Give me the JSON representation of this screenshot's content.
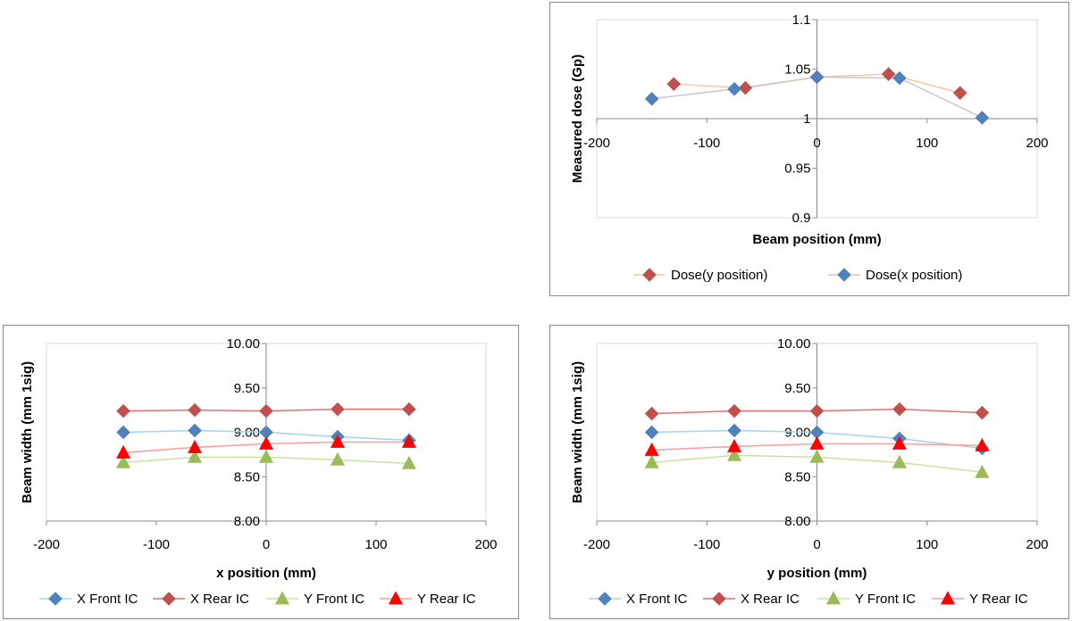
{
  "chart_data": [
    {
      "type": "line",
      "title": "",
      "xlabel": "Beam position (mm)",
      "ylabel": "Measured dose (Gp)",
      "xlim": [
        -200,
        200
      ],
      "ylim": [
        0.9,
        1.1
      ],
      "xticks": [
        -200,
        -100,
        0,
        100,
        200
      ],
      "yticks": [
        0.9,
        0.95,
        1,
        1.05,
        1.1
      ],
      "ytick_labels": [
        "0.9",
        "0.95",
        "1",
        "1.05",
        "1.1"
      ],
      "x_axis_crosses_at_y": 1.0,
      "grid": false,
      "legend_position": "bottom",
      "series": [
        {
          "name": "Dose(y position)",
          "color": "#c0504d",
          "line_color": "#f9c7a2",
          "marker": "diamond",
          "x": [
            -130,
            -65,
            0,
            65,
            130
          ],
          "y": [
            1.035,
            1.031,
            1.042,
            1.045,
            1.026
          ]
        },
        {
          "name": "Dose(x position)",
          "color": "#4f81bd",
          "line_color": "#c8c8c8",
          "marker": "diamond",
          "x": [
            -150,
            -75,
            0,
            75,
            150
          ],
          "y": [
            1.02,
            1.03,
            1.042,
            1.041,
            1.001
          ]
        }
      ]
    },
    {
      "type": "line",
      "title": "",
      "xlabel": "x position (mm)",
      "ylabel": "Beam width (mm 1sig)",
      "xlim": [
        -200,
        200
      ],
      "ylim": [
        8.0,
        10.0
      ],
      "xticks": [
        -200,
        -100,
        0,
        100,
        200
      ],
      "yticks": [
        8.0,
        8.5,
        9.0,
        9.5,
        10.0
      ],
      "ytick_labels": [
        "8.00",
        "8.50",
        "9.00",
        "9.50",
        "10.00"
      ],
      "x_axis_crosses_at_y": 8.0,
      "grid": false,
      "legend_position": "bottom",
      "series": [
        {
          "name": "X Front IC",
          "color": "#4f81bd",
          "line_color": "#9fd5f0",
          "marker": "diamond",
          "x": [
            -130,
            -65,
            0,
            65,
            130
          ],
          "y": [
            9.0,
            9.02,
            9.0,
            8.95,
            8.91
          ]
        },
        {
          "name": "X Rear IC",
          "color": "#c0504d",
          "line_color": "#e07070",
          "marker": "diamond",
          "x": [
            -130,
            -65,
            0,
            65,
            130
          ],
          "y": [
            9.24,
            9.25,
            9.24,
            9.26,
            9.26
          ]
        },
        {
          "name": "Y Front IC",
          "color": "#9bbb59",
          "line_color": "#c5e3a0",
          "marker": "triangle",
          "x": [
            -130,
            -65,
            0,
            65,
            130
          ],
          "y": [
            8.66,
            8.72,
            8.72,
            8.69,
            8.65
          ]
        },
        {
          "name": "Y Rear IC",
          "color": "#ff0000",
          "line_color": "#ff9a9a",
          "marker": "triangle",
          "x": [
            -130,
            -65,
            0,
            65,
            130
          ],
          "y": [
            8.77,
            8.83,
            8.87,
            8.89,
            8.89
          ]
        }
      ]
    },
    {
      "type": "line",
      "title": "",
      "xlabel": "y position (mm)",
      "ylabel": "Beam width (mm 1sig)",
      "xlim": [
        -200,
        200
      ],
      "ylim": [
        8.0,
        10.0
      ],
      "xticks": [
        -200,
        -100,
        0,
        100,
        200
      ],
      "yticks": [
        8.0,
        8.5,
        9.0,
        9.5,
        10.0
      ],
      "ytick_labels": [
        "8.00",
        "8.50",
        "9.00",
        "9.50",
        "10.00"
      ],
      "x_axis_crosses_at_y": 8.0,
      "grid": false,
      "legend_position": "bottom",
      "series": [
        {
          "name": "X Front IC",
          "color": "#4f81bd",
          "line_color": "#9fd5f0",
          "marker": "diamond",
          "x": [
            -150,
            -75,
            0,
            75,
            150
          ],
          "y": [
            9.0,
            9.02,
            9.0,
            8.93,
            8.82
          ]
        },
        {
          "name": "X Rear IC",
          "color": "#c0504d",
          "line_color": "#e07070",
          "marker": "diamond",
          "x": [
            -150,
            -75,
            0,
            75,
            150
          ],
          "y": [
            9.21,
            9.24,
            9.24,
            9.26,
            9.22
          ]
        },
        {
          "name": "Y Front IC",
          "color": "#9bbb59",
          "line_color": "#c5e3a0",
          "marker": "triangle",
          "x": [
            -150,
            -75,
            0,
            75,
            150
          ],
          "y": [
            8.66,
            8.74,
            8.72,
            8.66,
            8.55
          ]
        },
        {
          "name": "Y Rear IC",
          "color": "#ff0000",
          "line_color": "#ff9a9a",
          "marker": "triangle",
          "x": [
            -150,
            -75,
            0,
            75,
            150
          ],
          "y": [
            8.8,
            8.84,
            8.87,
            8.87,
            8.85
          ]
        }
      ]
    }
  ]
}
